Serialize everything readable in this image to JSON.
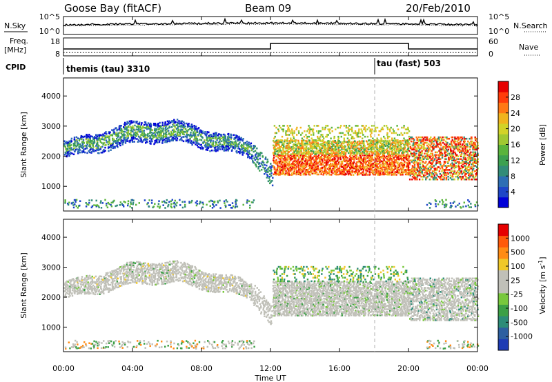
{
  "header": {
    "station": "Goose Bay (fitACF)",
    "beam": "Beam 09",
    "date": "20/Feb/2010"
  },
  "side_labels": {
    "nsky": "N.Sky",
    "freq_top": "Freq.",
    "freq_unit": "[MHz]",
    "cpid": "CPID",
    "nsearch": "N.Search",
    "nave": "Nave"
  },
  "chart_data": [
    {
      "type": "line",
      "panel": "noise",
      "series": [
        {
          "name": "N.Sky",
          "style": "solid"
        },
        {
          "name": "N.Search",
          "style": "dotted"
        }
      ],
      "left_ticks": [
        "10^5",
        "10^0"
      ],
      "right_ticks": [
        "10^5",
        "10^0"
      ],
      "x_range": [
        "00:00",
        "24:00"
      ]
    },
    {
      "type": "line",
      "panel": "frequency",
      "left_ticks": [
        "18",
        "8"
      ],
      "right_ticks": [
        "60",
        "0"
      ],
      "nave_steps": [
        {
          "from_h": 0,
          "to_h": 12,
          "value": 25
        },
        {
          "from_h": 12,
          "to_h": 20,
          "value": 45
        },
        {
          "from_h": 20,
          "to_h": 24,
          "value": 25
        }
      ],
      "freq_level": 10
    },
    {
      "type": "table",
      "panel": "cpid",
      "segments": [
        {
          "label": "themis (tau) 3310",
          "start_h": 0
        },
        {
          "label": "tau (fast) 503",
          "start_h": 18
        }
      ]
    },
    {
      "type": "heatmap",
      "panel": "power",
      "ylabel": "Slant Range [km]",
      "yticks": [
        1000,
        2000,
        3000,
        4000
      ],
      "ylim": [
        180,
        4600
      ],
      "colorbar": {
        "label": "Power [dB]",
        "ticks": [
          "28",
          "24",
          "20",
          "16",
          "12",
          "8",
          "4"
        ],
        "colors": [
          "#0000d8",
          "#1e46c8",
          "#2d6eb4",
          "#328c78",
          "#3ca050",
          "#5ab43c",
          "#a0c832",
          "#d2d228",
          "#f0b41e",
          "#ff7814",
          "#ff3c0a",
          "#e60000"
        ]
      }
    },
    {
      "type": "heatmap",
      "panel": "velocity",
      "ylabel": "Slant Range [km]",
      "yticks": [
        1000,
        2000,
        3000,
        4000
      ],
      "ylim": [
        180,
        4600
      ],
      "colorbar": {
        "label": "Velocity [m s",
        "label_sup": "-1",
        "label_close": "]",
        "ticks": [
          "1000",
          "500",
          "100",
          "25",
          "-25",
          "-100",
          "-500",
          "-1000"
        ],
        "colors": [
          "#1e3cb4",
          "#2d5fa0",
          "#2d8c78",
          "#3ca046",
          "#78c83c",
          "#c0c0b8",
          "#c0c0b8",
          "#f0c828",
          "#ff8c14",
          "#ff5a0a",
          "#e60000"
        ]
      }
    }
  ],
  "time_axis": {
    "xlabel": "Time UT",
    "ticks": [
      "00:00",
      "04:00",
      "08:00",
      "12:00",
      "16:00",
      "20:00",
      "00:00"
    ]
  }
}
